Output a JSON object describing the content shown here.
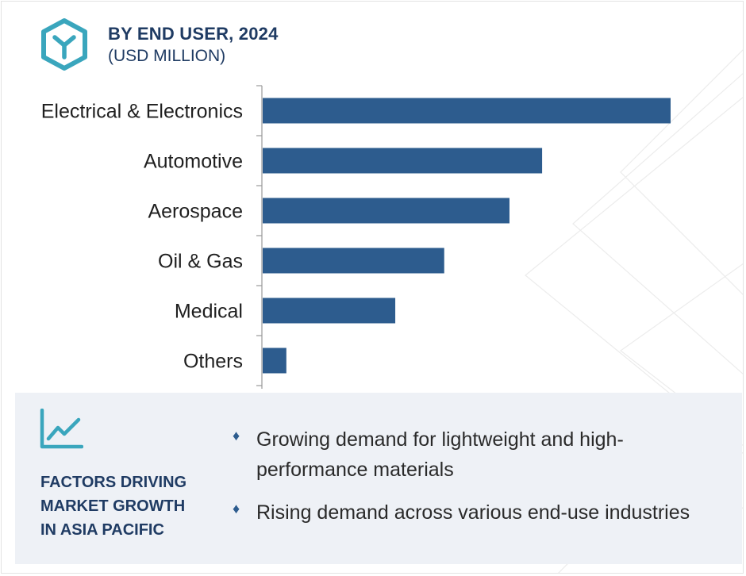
{
  "header": {
    "title": "BY END USER, 2024",
    "subtitle": "(USD MILLION)",
    "logo_icon": "hexagon-y-logo-icon"
  },
  "chart_data": {
    "type": "bar",
    "orientation": "horizontal",
    "categories": [
      "Electrical & Electronics",
      "Automotive",
      "Aerospace",
      "Oil & Gas",
      "Medical",
      "Others"
    ],
    "values": [
      100,
      68.5,
      60.5,
      44.5,
      32.5,
      5.8
    ],
    "xlim": [
      0,
      100
    ],
    "bar_color": "#2d5c8e",
    "grid": false,
    "legend": "none",
    "value_labels": false
  },
  "factors_panel": {
    "icon": "trend-line-icon",
    "heading_lines": [
      "FACTORS DRIVING",
      "MARKET GROWTH",
      "IN ASIA PACIFIC"
    ],
    "items": [
      {
        "text": "Growing demand for lightweight and high-performance materials"
      },
      {
        "text": "Rising demand across various end-use industries"
      }
    ],
    "bullet_icon": "diamond-bullet-icon"
  },
  "colors": {
    "accent": "#2d5c8e",
    "heading": "#1f3b63",
    "logo": "#3aa6bd",
    "panel_bg": "#eef1f6"
  }
}
